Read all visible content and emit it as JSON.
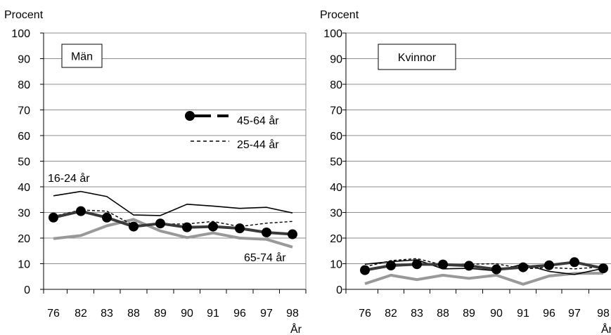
{
  "chart_data": [
    {
      "type": "line",
      "panel_label": "Män",
      "ylabel": "Procent",
      "xlabel": "År",
      "ylim": [
        0,
        100
      ],
      "ytick_labels": [
        "0",
        "10",
        "20",
        "30",
        "40",
        "50",
        "60",
        "70",
        "80",
        "90",
        "100"
      ],
      "categories": [
        "76",
        "82",
        "83",
        "88",
        "89",
        "90",
        "91",
        "96",
        "97",
        "98"
      ],
      "legend": [
        "45-64 år",
        "25-44 år"
      ],
      "annotations": [
        "16-24 år",
        "65-74 år"
      ],
      "series": [
        {
          "name": "16-24 år",
          "values": [
            36.5,
            38.2,
            36.2,
            29.0,
            28.8,
            33.2,
            32.5,
            31.6,
            32.0,
            29.8
          ],
          "color": "#000000",
          "style": "thin"
        },
        {
          "name": "25-44 år",
          "values": [
            28.5,
            31.0,
            30.5,
            25.0,
            25.5,
            25.5,
            26.5,
            24.5,
            25.8,
            26.5
          ],
          "color": "#000000",
          "style": "dashed"
        },
        {
          "name": "45-64 år",
          "values": [
            28.0,
            30.5,
            28.0,
            24.5,
            25.7,
            24.2,
            24.5,
            23.8,
            22.2,
            21.5
          ],
          "color": "#3a3a3a",
          "style": "thick-markers"
        },
        {
          "name": "65-74 år",
          "values": [
            19.8,
            21.0,
            24.8,
            27.3,
            22.8,
            20.2,
            22.0,
            20.0,
            19.5,
            16.5
          ],
          "color": "#999999",
          "style": "gray"
        }
      ]
    },
    {
      "type": "line",
      "panel_label": "Kvinnor",
      "ylabel": "Procent",
      "xlabel": "År",
      "ylim": [
        0,
        100
      ],
      "ytick_labels": [
        "0",
        "10",
        "20",
        "30",
        "40",
        "50",
        "60",
        "70",
        "80",
        "90",
        "100"
      ],
      "categories": [
        "76",
        "82",
        "83",
        "88",
        "89",
        "90",
        "91",
        "96",
        "97",
        "98"
      ],
      "series": [
        {
          "name": "16-24 år",
          "values": [
            9.8,
            10.8,
            11.5,
            8.0,
            8.2,
            7.2,
            9.8,
            7.0,
            5.8,
            8.2
          ],
          "color": "#000000",
          "style": "thin"
        },
        {
          "name": "25-44 år",
          "values": [
            8.8,
            11.2,
            12.0,
            9.5,
            9.8,
            10.0,
            8.0,
            8.5,
            8.0,
            8.8
          ],
          "color": "#000000",
          "style": "dashed"
        },
        {
          "name": "45-64 år",
          "values": [
            7.5,
            9.3,
            9.8,
            9.7,
            9.2,
            7.8,
            8.6,
            9.4,
            10.6,
            8.2
          ],
          "color": "#3a3a3a",
          "style": "thick-markers"
        },
        {
          "name": "65-74 år",
          "values": [
            2.2,
            5.5,
            3.8,
            5.5,
            4.3,
            5.5,
            2.0,
            5.2,
            6.2,
            6.3
          ],
          "color": "#999999",
          "style": "gray"
        }
      ]
    }
  ]
}
